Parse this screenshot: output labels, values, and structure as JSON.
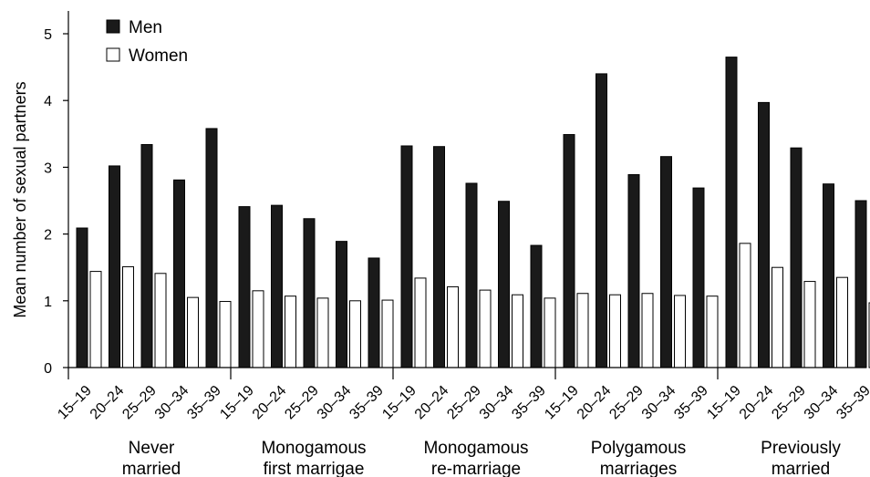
{
  "chart_data": {
    "type": "bar",
    "xlabel": "",
    "ylabel": "Mean number of sexual partners",
    "ylim": [
      0,
      5
    ],
    "yticks": [
      "0",
      "1",
      "2",
      "3",
      "4",
      "5"
    ],
    "legend": {
      "position": "top-left"
    },
    "age_groups": [
      "15–19",
      "20–24",
      "25–29",
      "30–34",
      "35–39"
    ],
    "groups": [
      {
        "label_lines": [
          "Never",
          "married"
        ],
        "men": [
          2.09,
          3.02,
          3.34,
          2.81,
          3.58
        ],
        "women": [
          1.44,
          1.51,
          1.41,
          1.05,
          0.99
        ]
      },
      {
        "label_lines": [
          "Monogamous",
          "first marrigae"
        ],
        "men": [
          2.41,
          2.43,
          2.23,
          1.89,
          1.64
        ],
        "women": [
          1.15,
          1.07,
          1.04,
          1.0,
          1.01
        ]
      },
      {
        "label_lines": [
          "Monogamous",
          "re-marriage"
        ],
        "men": [
          3.32,
          3.31,
          2.76,
          2.49,
          1.83
        ],
        "women": [
          1.34,
          1.21,
          1.16,
          1.09,
          1.04
        ]
      },
      {
        "label_lines": [
          "Polygamous",
          "marriages"
        ],
        "men": [
          3.49,
          4.4,
          2.89,
          3.16,
          2.69
        ],
        "women": [
          1.11,
          1.09,
          1.11,
          1.08,
          1.07
        ]
      },
      {
        "label_lines": [
          "Previously",
          "married"
        ],
        "men": [
          4.65,
          3.97,
          3.29,
          2.75,
          2.5
        ],
        "women": [
          1.86,
          1.5,
          1.29,
          1.35,
          0.97
        ]
      }
    ],
    "series": [
      {
        "name": "Men",
        "color": "#1a1a1a"
      },
      {
        "name": "Women",
        "color": "#ffffff"
      }
    ]
  }
}
